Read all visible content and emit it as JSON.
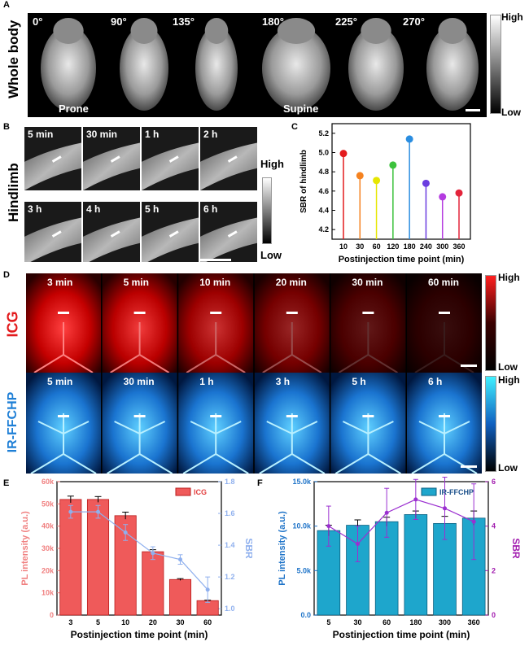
{
  "panels": {
    "A": {
      "letter": "A",
      "row_label": "Whole body",
      "angles": [
        "0°",
        "90°",
        "135°",
        "180°",
        "225°",
        "270°"
      ],
      "pose_labels": [
        "Prone",
        "Supine"
      ],
      "colorbar": {
        "high": "High",
        "low": "Low"
      }
    },
    "B": {
      "letter": "B",
      "row_label": "Hindlimb",
      "times_row1": [
        "5 min",
        "30 min",
        "1 h",
        "2 h"
      ],
      "times_row2": [
        "3 h",
        "4 h",
        "5 h",
        "6 h"
      ],
      "colorbar": {
        "high": "High",
        "low": "Low"
      }
    },
    "C": {
      "letter": "C"
    },
    "D": {
      "letter": "D",
      "icg_label": "ICG",
      "icg_times": [
        "3 min",
        "5 min",
        "10 min",
        "20 min",
        "30 min",
        "60 min"
      ],
      "ffchp_label": "IR-FFCHP",
      "ffchp_times": [
        "5 min",
        "30 min",
        "1 h",
        "3 h",
        "5 h",
        "6 h"
      ],
      "colorbar_icg": {
        "high": "High",
        "low": "Low"
      },
      "colorbar_ffchp": {
        "high": "High",
        "low": "Low"
      }
    },
    "E": {
      "letter": "E"
    },
    "F": {
      "letter": "F"
    }
  },
  "colors": {
    "icg_red": "#e31a1c",
    "ffchp_blue": "#1e7fd6",
    "bar_red": "#ef4444",
    "sbr_line_e": "#9bb8f0",
    "bar_teal": "#17a2c8",
    "sbr_line_f": "#a21caf"
  },
  "chart_data": [
    {
      "id": "C",
      "type": "scatter",
      "style": "lollipop",
      "x": [
        10,
        30,
        60,
        120,
        180,
        240,
        300,
        360
      ],
      "y": [
        4.99,
        4.76,
        4.71,
        4.87,
        5.14,
        4.68,
        4.54,
        4.58
      ],
      "point_colors": [
        "#e31a1c",
        "#f58220",
        "#e6e600",
        "#3cc23c",
        "#2a8de0",
        "#6b3de0",
        "#b43be0",
        "#e3243b"
      ],
      "xlabel": "Postinjection time point (min)",
      "ylabel": "SBR of hindlimb",
      "ylim": [
        4.1,
        5.3
      ],
      "yticks": [
        "4.2",
        "4.4",
        "4.6",
        "4.8",
        "5.0",
        "5.2"
      ],
      "grid": false
    },
    {
      "id": "E",
      "type": "bar",
      "categories": [
        "3",
        "5",
        "10",
        "20",
        "30",
        "60"
      ],
      "series": [
        {
          "name": "ICG",
          "axis": "left",
          "values": [
            52000,
            52000,
            44700,
            28500,
            16000,
            6500
          ],
          "errors": [
            1500,
            1300,
            1600,
            900,
            400,
            200
          ]
        },
        {
          "axis": "right",
          "kind": "line",
          "values": [
            1.61,
            1.61,
            1.48,
            1.35,
            1.31,
            1.12
          ],
          "errors": [
            0.04,
            0.04,
            0.05,
            0.04,
            0.03,
            0.08
          ]
        }
      ],
      "xlabel": "Postinjection time point (min)",
      "ylabel": "PL intensity (a.u.)",
      "y2label": "SBR",
      "ylim": [
        0,
        60000
      ],
      "yticks": [
        "0",
        "10k",
        "20k",
        "30k",
        "40k",
        "50k",
        "60k"
      ],
      "y2lim": [
        0.96,
        1.8
      ],
      "y2ticks": [
        "1.0",
        "1.2",
        "1.4",
        "1.6",
        "1.8"
      ],
      "legend": "top-right"
    },
    {
      "id": "F",
      "type": "bar",
      "categories": [
        "5",
        "30",
        "60",
        "180",
        "300",
        "360"
      ],
      "series": [
        {
          "name": "IR-FFCHP",
          "axis": "left",
          "values": [
            9500,
            10100,
            10500,
            11300,
            10300,
            10900
          ],
          "errors": [
            600,
            600,
            500,
            400,
            800,
            800
          ]
        },
        {
          "axis": "right",
          "kind": "line",
          "values": [
            4.0,
            3.2,
            4.6,
            5.2,
            4.8,
            4.2
          ],
          "errors": [
            0.9,
            0.8,
            1.1,
            0.9,
            1.4,
            1.7
          ]
        }
      ],
      "xlabel": "Postinjection time point (min)",
      "ylabel": "PL intensity (a.u.)",
      "y2label": "SBR",
      "ylim": [
        0,
        15000
      ],
      "yticks": [
        "0.0",
        "5.0k",
        "10.0k",
        "15.0k"
      ],
      "y2lim": [
        0,
        6
      ],
      "y2ticks": [
        "0",
        "2",
        "4",
        "6"
      ],
      "legend": "top-right"
    }
  ]
}
